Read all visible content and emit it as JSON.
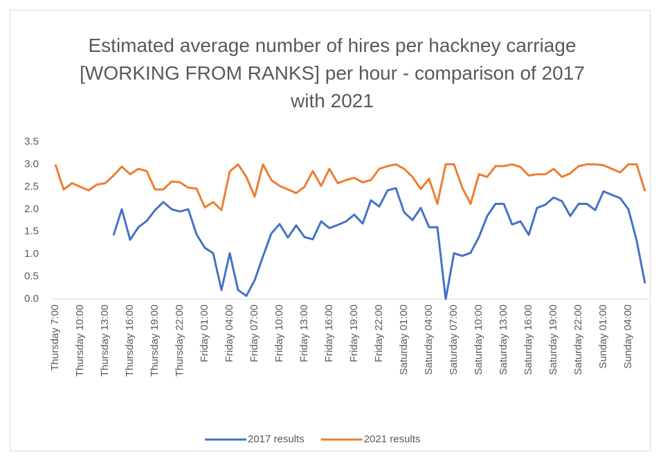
{
  "chart_data": {
    "type": "line",
    "title": "Estimated average number of hires per hackney carriage [WORKING FROM RANKS] per hour - comparison of 2017 with 2021",
    "categories": [
      "Thursday 7:00",
      null,
      null,
      "Thursday 10:00",
      null,
      null,
      "Thursday 13:00",
      null,
      null,
      "Thursday 16:00",
      null,
      null,
      "Thursday 19:00",
      null,
      null,
      "Thursday 22:00",
      null,
      null,
      "Friday 01:00",
      null,
      null,
      "Friday 04:00",
      null,
      null,
      "Friday 07:00",
      null,
      null,
      "Friday 10:00",
      null,
      null,
      "Friday 13:00",
      null,
      null,
      "Friday 16:00",
      null,
      null,
      "Friday 19:00",
      null,
      null,
      "Friday 22:00",
      null,
      null,
      "Saturday 01:00",
      null,
      null,
      "Saturday 04:00",
      null,
      null,
      "Saturday 07:00",
      null,
      null,
      "Saturday 10:00",
      null,
      null,
      "Saturday 13:00",
      null,
      null,
      "Saturday 16:00",
      null,
      null,
      "Saturday 19:00",
      null,
      null,
      "Saturday 22:00",
      null,
      null,
      "Sunday 01:00",
      null,
      null,
      "Sunday 04:00",
      null,
      null
    ],
    "series": [
      {
        "name": "2017 results",
        "color": "#4472c4",
        "values": [
          null,
          null,
          null,
          null,
          null,
          null,
          null,
          1.42,
          2.0,
          1.32,
          1.6,
          1.74,
          1.98,
          2.16,
          2.0,
          1.95,
          2.0,
          1.44,
          1.14,
          1.02,
          0.2,
          1.02,
          0.2,
          0.07,
          0.42,
          0.95,
          1.46,
          1.67,
          1.37,
          1.64,
          1.38,
          1.33,
          1.73,
          1.58,
          1.65,
          1.73,
          1.88,
          1.68,
          2.2,
          2.06,
          2.42,
          2.47,
          1.93,
          1.76,
          2.03,
          1.6,
          1.6,
          0.0,
          1.02,
          0.96,
          1.03,
          1.38,
          1.85,
          2.12,
          2.12,
          1.66,
          1.73,
          1.43,
          2.03,
          2.1,
          2.26,
          2.18,
          1.85,
          2.12,
          2.12,
          1.98,
          2.4,
          2.32,
          2.25,
          2.0,
          1.3,
          0.35
        ]
      },
      {
        "name": "2021 results",
        "color": "#ed7d31",
        "values": [
          3.0,
          2.44,
          2.58,
          2.5,
          2.42,
          2.55,
          2.58,
          2.75,
          2.95,
          2.78,
          2.9,
          2.85,
          2.44,
          2.44,
          2.62,
          2.6,
          2.48,
          2.46,
          2.04,
          2.16,
          1.98,
          2.84,
          3.0,
          2.72,
          2.28,
          3.0,
          2.65,
          2.52,
          2.44,
          2.36,
          2.5,
          2.85,
          2.52,
          2.9,
          2.58,
          2.65,
          2.7,
          2.6,
          2.65,
          2.9,
          2.96,
          3.0,
          2.9,
          2.72,
          2.45,
          2.68,
          2.12,
          3.0,
          3.0,
          2.48,
          2.12,
          2.78,
          2.72,
          2.96,
          2.96,
          3.0,
          2.94,
          2.75,
          2.78,
          2.78,
          2.9,
          2.72,
          2.8,
          2.96,
          3.0,
          3.0,
          2.98,
          2.9,
          2.82,
          3.0,
          3.0,
          2.4
        ]
      }
    ],
    "ylim": [
      0,
      3.5
    ],
    "yticks": [
      {
        "value": 0,
        "label": "0.0"
      },
      {
        "value": 0.5,
        "label": "0.5"
      },
      {
        "value": 1,
        "label": "1.0"
      },
      {
        "value": 1.5,
        "label": "1.5"
      },
      {
        "value": 2,
        "label": "2.0"
      },
      {
        "value": 2.5,
        "label": "2.5"
      },
      {
        "value": 3,
        "label": "3.0"
      },
      {
        "value": 3.5,
        "label": "3.5"
      }
    ],
    "grid": false,
    "legend": "bottom"
  }
}
